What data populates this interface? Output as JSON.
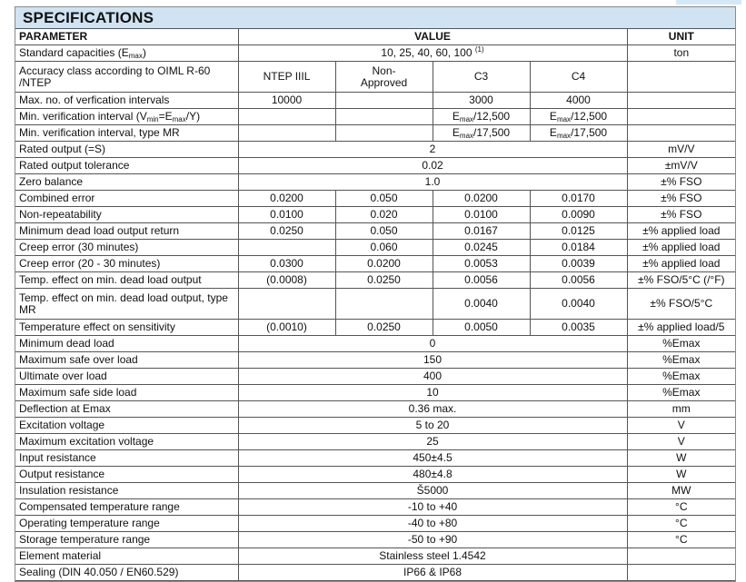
{
  "title": "SPECIFICATIONS",
  "headers": {
    "parameter": "PARAMETER",
    "value": "VALUE",
    "unit": "UNIT"
  },
  "rows": [
    {
      "label": [
        {
          "t": "Standard capacities (E"
        },
        {
          "sub": "max"
        },
        {
          "t": ")"
        }
      ],
      "span": [
        {
          "t": "10, 25, 40, 60, 100 "
        },
        {
          "sup": "(1)"
        }
      ],
      "unit": "ton"
    },
    {
      "label": [
        {
          "t": "Accuracy class according to OIML R-60 /NTEP"
        }
      ],
      "values": [
        "NTEP IIIL",
        "Non-\nApproved",
        "C3",
        "C4"
      ],
      "unit": "",
      "tall": true
    },
    {
      "label": [
        {
          "t": "Max. no. of verfication intervals"
        }
      ],
      "values": [
        "10000",
        "",
        "3000",
        "4000"
      ],
      "unit": ""
    },
    {
      "label": [
        {
          "t": "Min. verification interval (V"
        },
        {
          "sub": "min"
        },
        {
          "t": "=E"
        },
        {
          "sub": "max"
        },
        {
          "t": "/Y)"
        }
      ],
      "values": [
        "",
        "",
        [
          {
            "t": "E"
          },
          {
            "sub": "max"
          },
          {
            "t": "/12,500"
          }
        ],
        [
          {
            "t": "E"
          },
          {
            "sub": "max"
          },
          {
            "t": "/12,500"
          }
        ]
      ],
      "unit": ""
    },
    {
      "label": [
        {
          "t": "Min. verification interval, type MR"
        }
      ],
      "values": [
        "",
        "",
        [
          {
            "t": "E"
          },
          {
            "sub": "max"
          },
          {
            "t": "/17,500"
          }
        ],
        [
          {
            "t": "E"
          },
          {
            "sub": "max"
          },
          {
            "t": "/17,500"
          }
        ]
      ],
      "unit": ""
    },
    {
      "label": [
        {
          "t": "Rated output (=S)"
        }
      ],
      "span": [
        {
          "t": "2"
        }
      ],
      "unit": "mV/V"
    },
    {
      "label": [
        {
          "t": "Rated output tolerance"
        }
      ],
      "span": [
        {
          "t": "0.02"
        }
      ],
      "unit": "±mV/V"
    },
    {
      "label": [
        {
          "t": "Zero balance"
        }
      ],
      "span": [
        {
          "t": "1.0"
        }
      ],
      "unit": "±% FSO"
    },
    {
      "label": [
        {
          "t": "Combined error"
        }
      ],
      "values": [
        "0.0200",
        "0.050",
        "0.0200",
        "0.0170"
      ],
      "unit": "±% FSO"
    },
    {
      "label": [
        {
          "t": "Non-repeatability"
        }
      ],
      "values": [
        "0.0100",
        "0.020",
        "0.0100",
        "0.0090"
      ],
      "unit": "±% FSO"
    },
    {
      "label": [
        {
          "t": "Minimum dead load output return"
        }
      ],
      "values": [
        "0.0250",
        "0.050",
        "0.0167",
        "0.0125"
      ],
      "unit": "±% applied load"
    },
    {
      "label": [
        {
          "t": "Creep error (30 minutes)"
        }
      ],
      "values": [
        "",
        "0.060",
        "0.0245",
        "0.0184"
      ],
      "unit": "±% applied load"
    },
    {
      "label": [
        {
          "t": "Creep error (20 - 30 minutes)"
        }
      ],
      "values": [
        "0.0300",
        "0.0200",
        "0.0053",
        "0.0039"
      ],
      "unit": "±% applied load"
    },
    {
      "label": [
        {
          "t": "Temp. effect on min. dead load output"
        }
      ],
      "values": [
        "(0.0008)",
        "0.0250",
        "0.0056",
        "0.0056"
      ],
      "unit": "±% FSO/5°C (/°F)"
    },
    {
      "label": [
        {
          "t": "Temp. effect on min. dead load output, type MR"
        }
      ],
      "values": [
        "",
        "",
        "0.0040",
        "0.0040"
      ],
      "unit": "±% FSO/5°C",
      "tall": true
    },
    {
      "label": [
        {
          "t": "Temperature effect on sensitivity"
        }
      ],
      "values": [
        "(0.0010)",
        "0.0250",
        "0.0050",
        "0.0035"
      ],
      "unit": "±% applied load/5"
    },
    {
      "label": [
        {
          "t": "Minimum dead load"
        }
      ],
      "span": [
        {
          "t": "0"
        }
      ],
      "unit": "%Emax"
    },
    {
      "label": [
        {
          "t": "Maximum safe over load"
        }
      ],
      "span": [
        {
          "t": "150"
        }
      ],
      "unit": "%Emax"
    },
    {
      "label": [
        {
          "t": "Ultimate over load"
        }
      ],
      "span": [
        {
          "t": "400"
        }
      ],
      "unit": "%Emax"
    },
    {
      "label": [
        {
          "t": "Maximum safe side load"
        }
      ],
      "span": [
        {
          "t": "10"
        }
      ],
      "unit": "%Emax"
    },
    {
      "label": [
        {
          "t": "Deflection at Emax"
        }
      ],
      "span": [
        {
          "t": "0.36 max."
        }
      ],
      "unit": "mm"
    },
    {
      "label": [
        {
          "t": "Excitation voltage"
        }
      ],
      "span": [
        {
          "t": "5 to 20"
        }
      ],
      "unit": "V"
    },
    {
      "label": [
        {
          "t": "Maximum excitation voltage"
        }
      ],
      "span": [
        {
          "t": "25"
        }
      ],
      "unit": "V"
    },
    {
      "label": [
        {
          "t": "Input resistance"
        }
      ],
      "span": [
        {
          "t": "450±4.5"
        }
      ],
      "unit": "W"
    },
    {
      "label": [
        {
          "t": "Output resistance"
        }
      ],
      "span": [
        {
          "t": "480±4.8"
        }
      ],
      "unit": "W"
    },
    {
      "label": [
        {
          "t": "Insulation resistance"
        }
      ],
      "span": [
        {
          "t": "Š5000"
        }
      ],
      "unit": "MW"
    },
    {
      "label": [
        {
          "t": "Compensated temperature range"
        }
      ],
      "span": [
        {
          "t": "-10 to +40"
        }
      ],
      "unit": "°C"
    },
    {
      "label": [
        {
          "t": "Operating temperature range"
        }
      ],
      "span": [
        {
          "t": "-40 to +80"
        }
      ],
      "unit": "°C"
    },
    {
      "label": [
        {
          "t": "Storage temperature range"
        }
      ],
      "span": [
        {
          "t": "-50 to +90"
        }
      ],
      "unit": "°C"
    },
    {
      "label": [
        {
          "t": "Element material"
        }
      ],
      "span": [
        {
          "t": "Stainless steel 1.4542"
        }
      ],
      "unit": ""
    },
    {
      "label": [
        {
          "t": "Sealing (DIN 40.050 / EN60.529)"
        }
      ],
      "span": [
        {
          "t": "IP66 & IP68"
        }
      ],
      "unit": ""
    }
  ]
}
